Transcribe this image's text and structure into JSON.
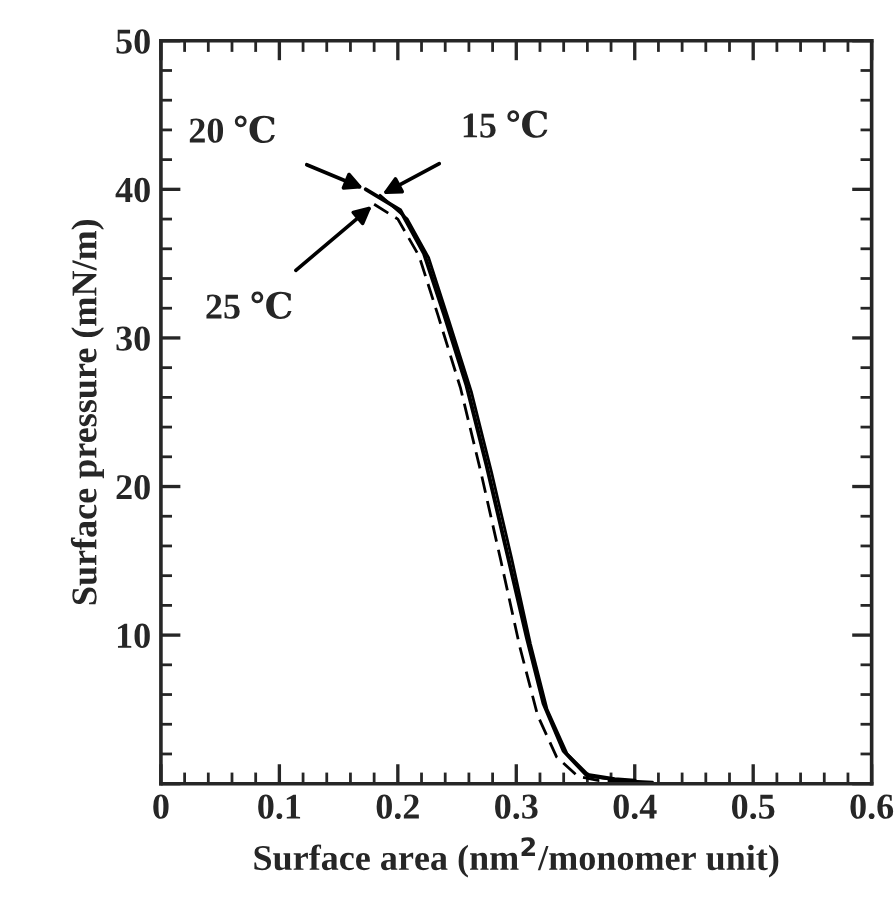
{
  "chart_data": {
    "type": "line",
    "xlabel": "Surface area (nm$^{2}$/monomer unit)",
    "ylabel": "Surface pressure (mN/m)",
    "xlim": [
      0,
      0.6
    ],
    "ylim": [
      0,
      50
    ],
    "xticks": [
      0,
      0.1,
      0.2,
      0.3,
      0.4,
      0.5,
      0.6
    ],
    "yticks": [
      {
        "value": 0,
        "label": null
      },
      10,
      20,
      30,
      40,
      50
    ],
    "grid": false,
    "legend": false,
    "marker": "none",
    "series": [
      {
        "color": "#000000",
        "line_style": "solid",
        "x": [
          0.173,
          0.202,
          0.222,
          0.239,
          0.258,
          0.275,
          0.292,
          0.309,
          0.323,
          0.34,
          0.359,
          0.383,
          0.4
        ],
        "values": [
          40.0,
          38.6,
          35.7,
          31.6,
          26.8,
          21.4,
          15.6,
          9.8,
          5.4,
          2.2,
          0.6,
          0.3,
          0.2
        ]
      },
      {
        "color": "#000000",
        "line_style": "solid",
        "x": [
          0.185,
          0.208,
          0.226,
          0.243,
          0.262,
          0.279,
          0.296,
          0.312,
          0.326,
          0.343,
          0.362,
          0.39,
          0.415
        ],
        "values": [
          39.6,
          38.0,
          35.4,
          31.2,
          26.4,
          21.0,
          15.2,
          9.4,
          5.0,
          2.0,
          0.5,
          0.2,
          0.1
        ]
      },
      {
        "color": "#000000",
        "line_style": "dashed",
        "x": [
          0.18,
          0.2,
          0.218,
          0.234,
          0.253,
          0.27,
          0.287,
          0.303,
          0.318,
          0.334,
          0.352,
          0.37,
          0.39
        ],
        "values": [
          39.0,
          38.0,
          35.5,
          31.5,
          26.6,
          21.0,
          15.0,
          9.2,
          4.6,
          1.8,
          0.5,
          0.2,
          0.1
        ]
      }
    ],
    "annotations": [
      {
        "text": "20 ℃",
        "x": 0.173,
        "y": 40.0
      },
      {
        "text": "15 ℃",
        "x": 0.185,
        "y": 39.6
      },
      {
        "text": "25 ℃",
        "x": 0.18,
        "y": 39.0
      }
    ]
  }
}
